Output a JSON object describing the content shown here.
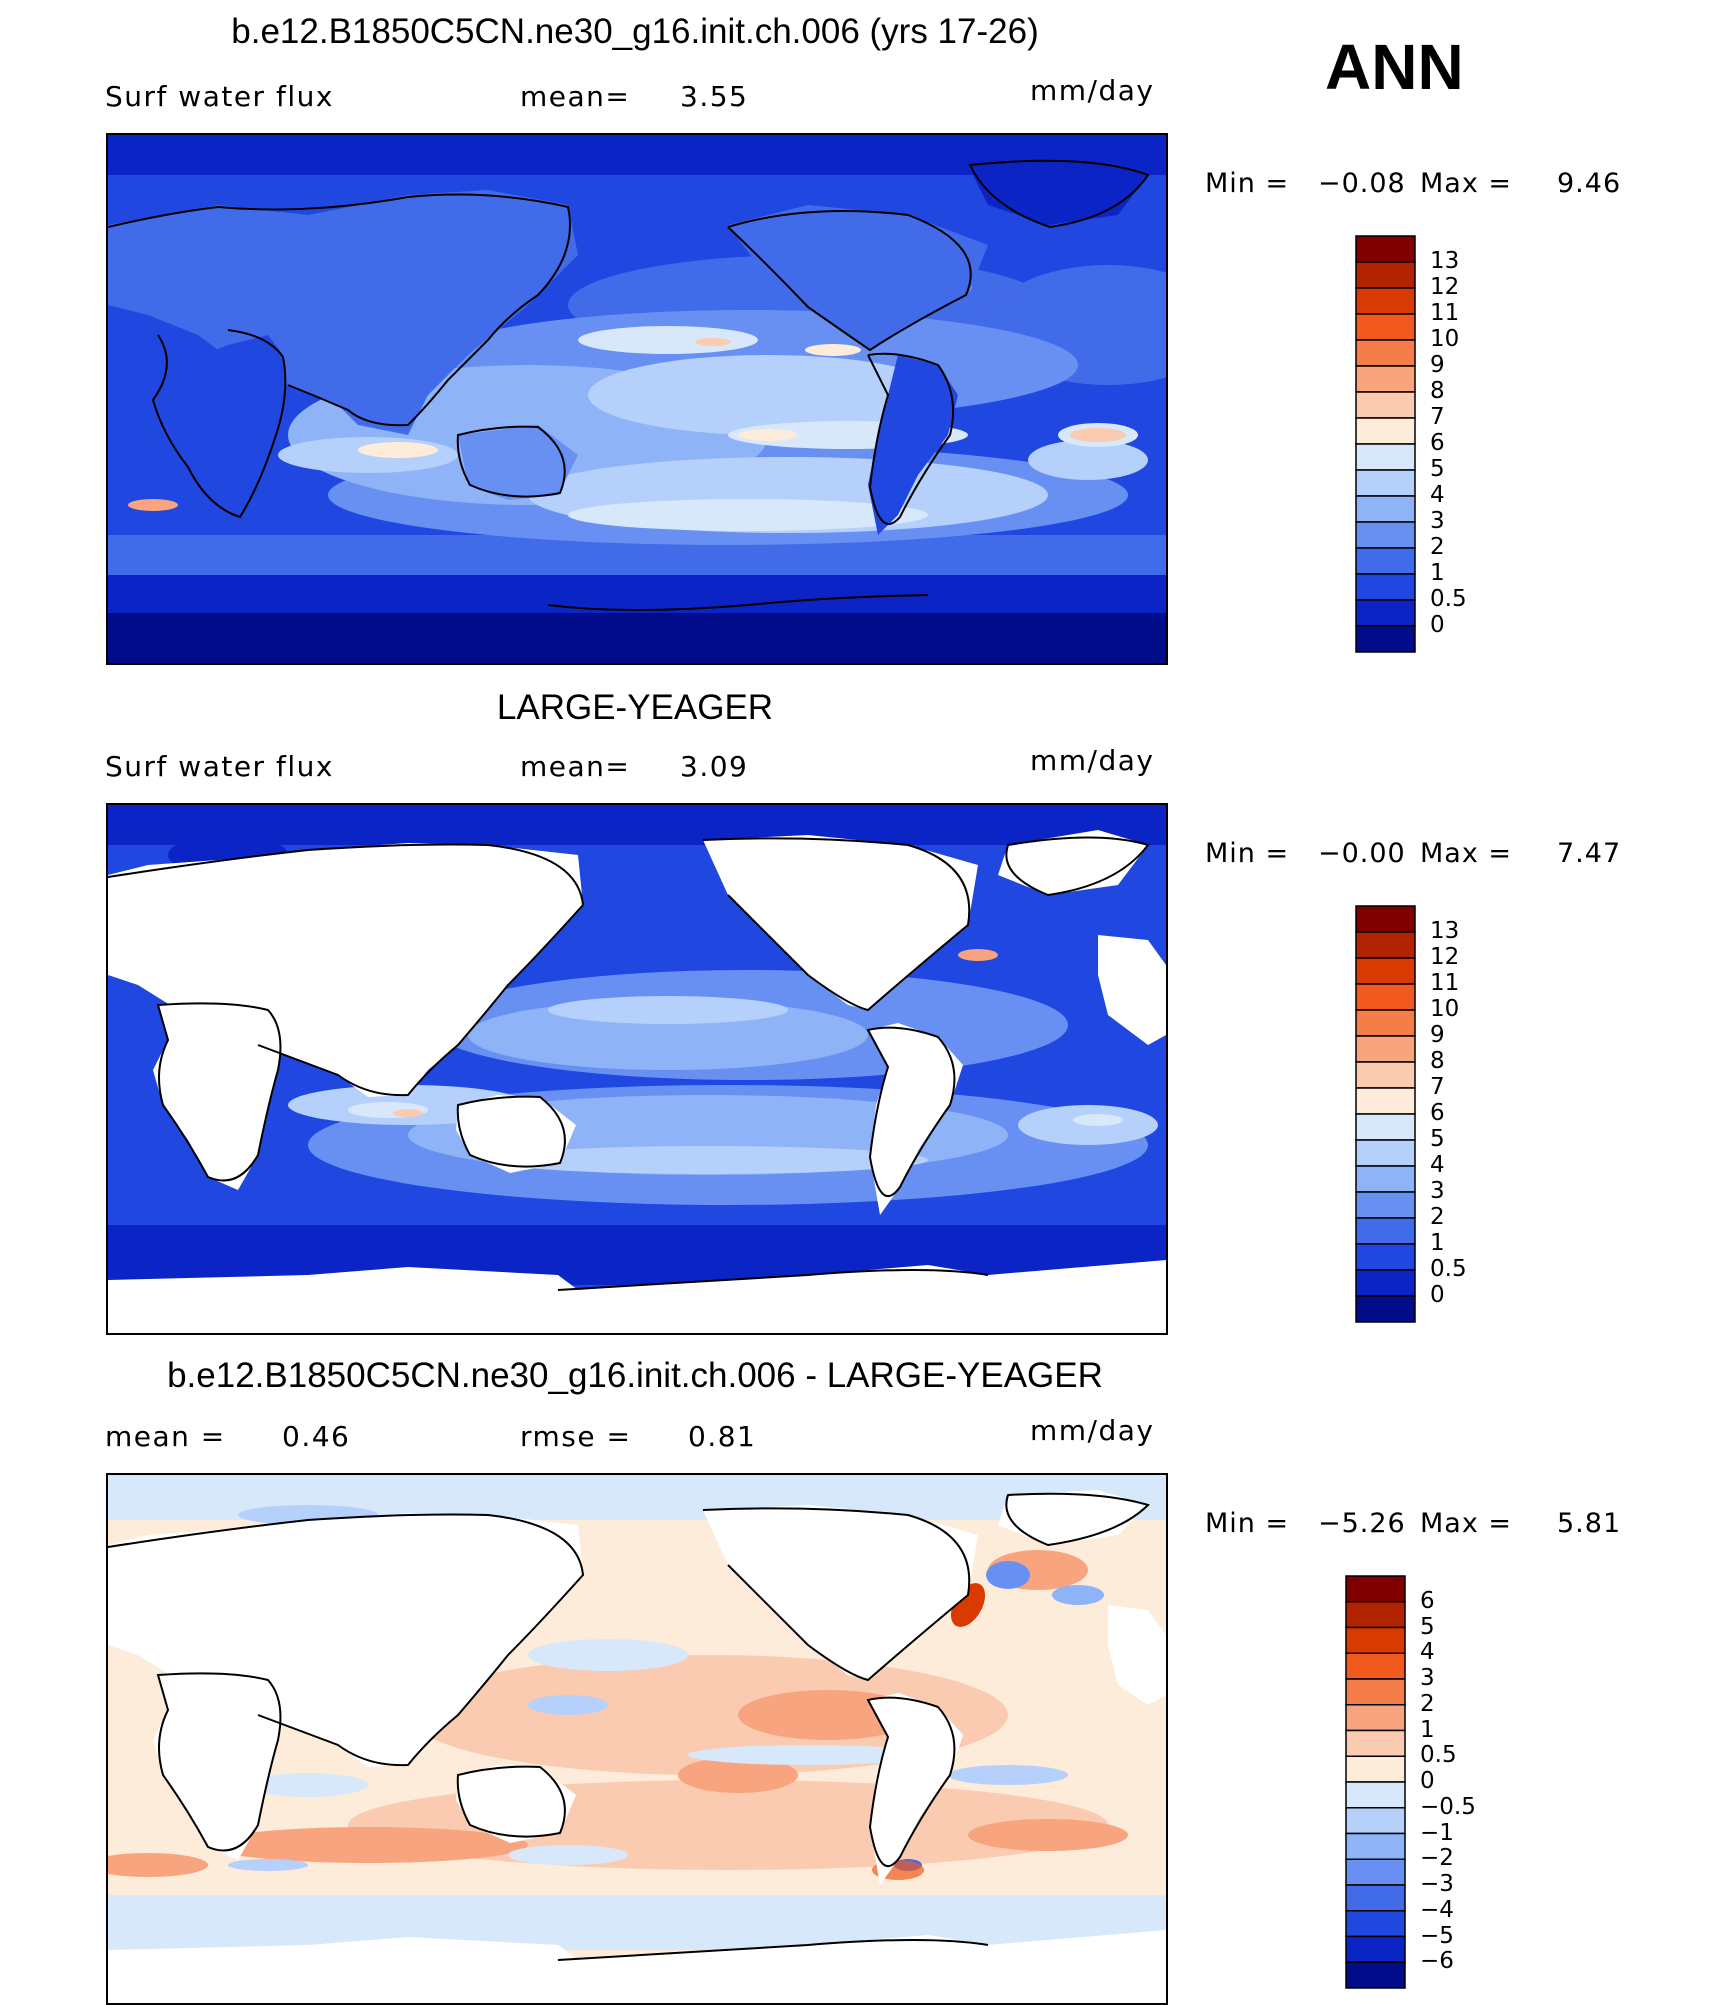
{
  "header": {
    "season": "ANN"
  },
  "panels": [
    {
      "id": "model",
      "title": "b.e12.B1850C5CN.ne30_g16.init.ch.006 (yrs 17-26)",
      "left_label": "Surf water flux",
      "stat1_label": "mean=",
      "stat1_value": "3.55",
      "stat2_label": "",
      "stat2_value": "",
      "units": "mm/day",
      "min_label": "Min =",
      "min_value": "−0.08",
      "max_label": "Max =",
      "max_value": "9.46",
      "colorbar": {
        "levels": [
          "13",
          "12",
          "11",
          "10",
          "9",
          "8",
          "7",
          "6",
          "5",
          "4",
          "3",
          "2",
          "1",
          "0.5",
          "0"
        ],
        "colors": [
          "#800000",
          "#b22400",
          "#d83a00",
          "#f25a1d",
          "#f57d4a",
          "#f7a47f",
          "#fbcbb1",
          "#fdecd9",
          "#d7e8fb",
          "#b5d0fa",
          "#8fb3f7",
          "#6890f2",
          "#426be9",
          "#2047df",
          "#0a24c6",
          "#000c8a"
        ]
      }
    },
    {
      "id": "obs",
      "title": "LARGE-YEAGER",
      "left_label": "Surf water flux",
      "stat1_label": "mean=",
      "stat1_value": "3.09",
      "stat2_label": "",
      "stat2_value": "",
      "units": "mm/day",
      "min_label": "Min =",
      "min_value": "−0.00",
      "max_label": "Max =",
      "max_value": "7.47",
      "colorbar": {
        "levels": [
          "13",
          "12",
          "11",
          "10",
          "9",
          "8",
          "7",
          "6",
          "5",
          "4",
          "3",
          "2",
          "1",
          "0.5",
          "0"
        ],
        "colors": [
          "#800000",
          "#b22400",
          "#d83a00",
          "#f25a1d",
          "#f57d4a",
          "#f7a47f",
          "#fbcbb1",
          "#fdecd9",
          "#d7e8fb",
          "#b5d0fa",
          "#8fb3f7",
          "#6890f2",
          "#426be9",
          "#2047df",
          "#0a24c6",
          "#000c8a"
        ]
      }
    },
    {
      "id": "diff",
      "title": "b.e12.B1850C5CN.ne30_g16.init.ch.006 - LARGE-YEAGER",
      "left_label": "mean =",
      "left_value": "0.46",
      "stat1_label": "",
      "stat1_value": "",
      "stat2_label": "rmse =",
      "stat2_value": "0.81",
      "units": "mm/day",
      "min_label": "Min =",
      "min_value": "−5.26",
      "max_label": "Max =",
      "max_value": "5.81",
      "colorbar": {
        "levels": [
          "6",
          "5",
          "4",
          "3",
          "2",
          "1",
          "0.5",
          "0",
          "−0.5",
          "−1",
          "−2",
          "−3",
          "−4",
          "−5",
          "−6"
        ],
        "colors": [
          "#800000",
          "#b22400",
          "#d83a00",
          "#f25a1d",
          "#f57d4a",
          "#f7a47f",
          "#fbcbb1",
          "#fdecd9",
          "#d7e8fb",
          "#b5d0fa",
          "#8fb3f7",
          "#6890f2",
          "#426be9",
          "#2047df",
          "#0a24c6",
          "#000c8a"
        ]
      }
    }
  ]
}
